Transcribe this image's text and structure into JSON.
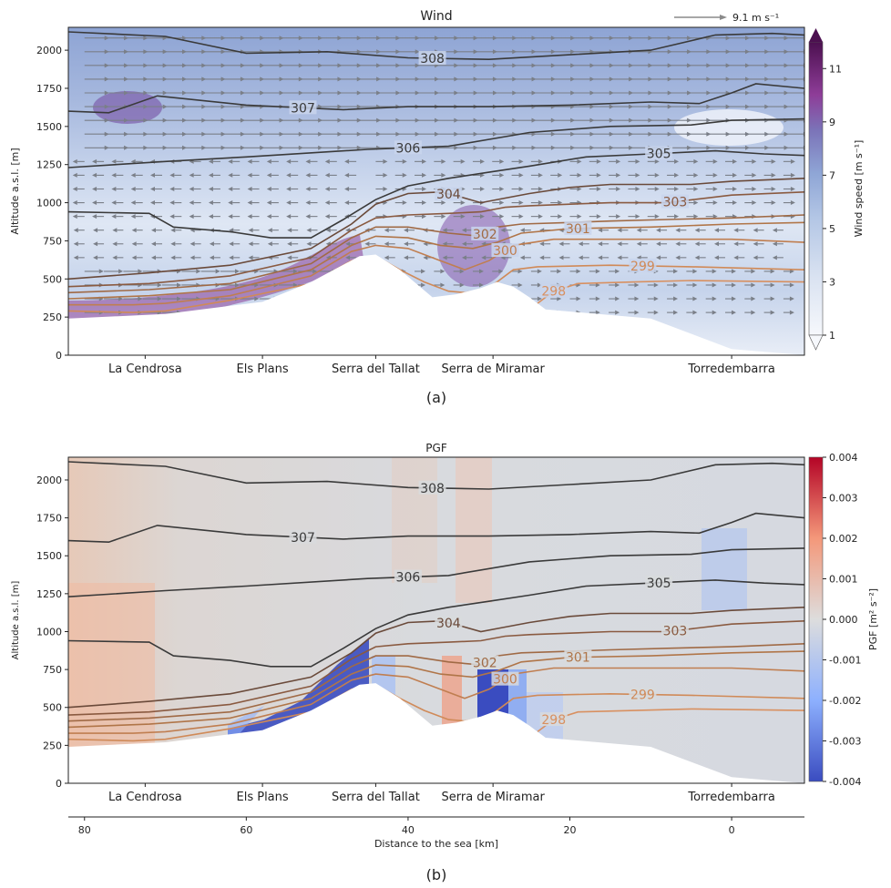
{
  "chart_data": [
    {
      "type": "contour",
      "title": "Wind",
      "panel_label": "(a)",
      "ylabel": "Altitude a.s.l. [m]",
      "ylim": [
        0,
        2150
      ],
      "yticks": [
        0,
        250,
        500,
        750,
        1000,
        1250,
        1500,
        1750,
        2000
      ],
      "xlim": [
        82,
        -9
      ],
      "locations": [
        {
          "name": "La Cendrosa",
          "x": 72.5
        },
        {
          "name": "Els Plans",
          "x": 58
        },
        {
          "name": "Serra del Tallat",
          "x": 44
        },
        {
          "name": "Serra de Miramar",
          "x": 29.5
        },
        {
          "name": "Torredembarra",
          "x": 0
        }
      ],
      "reference_vector": {
        "value": 9.1,
        "label": "9.1 m s⁻¹"
      },
      "colorbar": {
        "label": "Wind speed [m s⁻¹]",
        "ticks": [
          1,
          3,
          5,
          7,
          9,
          11
        ],
        "range": [
          1,
          12
        ],
        "extend": "both"
      }
    },
    {
      "type": "contour",
      "title": "PGF",
      "panel_label": "(b)",
      "ylabel": "Altitude a.s.l. [m]",
      "xlabel": "Distance to the sea [km]",
      "ylim": [
        0,
        2150
      ],
      "yticks": [
        0,
        250,
        500,
        750,
        1000,
        1250,
        1500,
        1750,
        2000
      ],
      "xlim": [
        82,
        -9
      ],
      "xticks": [
        80,
        60,
        40,
        20,
        0
      ],
      "locations": [
        {
          "name": "La Cendrosa",
          "x": 72.5
        },
        {
          "name": "Els Plans",
          "x": 58
        },
        {
          "name": "Serra del Tallat",
          "x": 44
        },
        {
          "name": "Serra de Miramar",
          "x": 29.5
        },
        {
          "name": "Torredembarra",
          "x": 0
        }
      ],
      "colorbar": {
        "label": "PGF [m² s⁻²]",
        "ticks": [
          "0.004",
          "0.003",
          "0.002",
          "0.001",
          "0.000",
          "-0.001",
          "-0.002",
          "-0.003",
          "-0.004"
        ],
        "range": [
          -0.004,
          0.004
        ]
      }
    }
  ],
  "shared": {
    "terrain": [
      [
        82,
        240
      ],
      [
        70,
        270
      ],
      [
        58,
        350
      ],
      [
        52,
        480
      ],
      [
        46,
        650
      ],
      [
        44,
        660
      ],
      [
        41,
        560
      ],
      [
        37,
        380
      ],
      [
        34,
        400
      ],
      [
        31,
        440
      ],
      [
        29,
        480
      ],
      [
        27,
        450
      ],
      [
        25,
        380
      ],
      [
        23,
        300
      ],
      [
        10,
        240
      ],
      [
        0,
        40
      ],
      [
        -9,
        0
      ]
    ],
    "theta_levels": [
      {
        "label": "308",
        "color": "#3a3a3a",
        "pts": [
          [
            82,
            2120
          ],
          [
            70,
            2090
          ],
          [
            60,
            1980
          ],
          [
            50,
            1990
          ],
          [
            40,
            1950
          ],
          [
            30,
            1940
          ],
          [
            20,
            1970
          ],
          [
            10,
            2000
          ],
          [
            2,
            2100
          ],
          [
            -5,
            2110
          ],
          [
            -9,
            2100
          ]
        ],
        "label_at": 37
      },
      {
        "label": "307",
        "color": "#3a3a3a",
        "pts": [
          [
            82,
            1600
          ],
          [
            77,
            1590
          ],
          [
            71,
            1700
          ],
          [
            60,
            1640
          ],
          [
            48,
            1610
          ],
          [
            40,
            1630
          ],
          [
            30,
            1630
          ],
          [
            20,
            1640
          ],
          [
            10,
            1660
          ],
          [
            4,
            1650
          ],
          [
            0,
            1720
          ],
          [
            -3,
            1780
          ],
          [
            -9,
            1750
          ]
        ],
        "label_at": 53
      },
      {
        "label": "306",
        "color": "#3a3a3a",
        "pts": [
          [
            82,
            1230
          ],
          [
            70,
            1270
          ],
          [
            60,
            1300
          ],
          [
            45,
            1350
          ],
          [
            35,
            1370
          ],
          [
            25,
            1460
          ],
          [
            15,
            1500
          ],
          [
            5,
            1510
          ],
          [
            0,
            1540
          ],
          [
            -9,
            1550
          ]
        ],
        "label_at": 40
      },
      {
        "label": "305",
        "color": "#3a3a3a",
        "pts": [
          [
            82,
            940
          ],
          [
            72,
            930
          ],
          [
            69,
            840
          ],
          [
            62,
            810
          ],
          [
            57,
            770
          ],
          [
            52,
            770
          ],
          [
            48,
            890
          ],
          [
            44,
            1020
          ],
          [
            40,
            1110
          ],
          [
            35,
            1160
          ],
          [
            30,
            1200
          ],
          [
            25,
            1240
          ],
          [
            18,
            1300
          ],
          [
            10,
            1320
          ],
          [
            2,
            1340
          ],
          [
            -4,
            1320
          ],
          [
            -9,
            1310
          ]
        ],
        "label_at": 9
      },
      {
        "label": "304",
        "color": "#6a4a3a",
        "pts": [
          [
            82,
            500
          ],
          [
            72,
            540
          ],
          [
            62,
            590
          ],
          [
            52,
            700
          ],
          [
            47,
            860
          ],
          [
            44,
            990
          ],
          [
            40,
            1060
          ],
          [
            36,
            1070
          ],
          [
            33,
            1030
          ],
          [
            31,
            1000
          ],
          [
            28,
            1030
          ],
          [
            25,
            1060
          ],
          [
            20,
            1100
          ],
          [
            15,
            1120
          ],
          [
            10,
            1120
          ],
          [
            5,
            1120
          ],
          [
            0,
            1140
          ],
          [
            -9,
            1160
          ]
        ],
        "label_at": 35
      },
      {
        "label": "303",
        "color": "#8a5a40",
        "pts": [
          [
            82,
            450
          ],
          [
            72,
            470
          ],
          [
            62,
            520
          ],
          [
            52,
            640
          ],
          [
            47,
            820
          ],
          [
            44,
            900
          ],
          [
            40,
            920
          ],
          [
            35,
            930
          ],
          [
            31,
            940
          ],
          [
            28,
            970
          ],
          [
            25,
            980
          ],
          [
            20,
            990
          ],
          [
            15,
            1000
          ],
          [
            8,
            1000
          ],
          [
            0,
            1050
          ],
          [
            -9,
            1070
          ]
        ],
        "label_at": 7
      },
      {
        "label": "302",
        "color": "#a06a45",
        "pts": [
          [
            82,
            410
          ],
          [
            72,
            430
          ],
          [
            62,
            470
          ],
          [
            52,
            600
          ],
          [
            47,
            770
          ],
          [
            44,
            840
          ],
          [
            40,
            840
          ],
          [
            35,
            800
          ],
          [
            31,
            780
          ],
          [
            29,
            840
          ],
          [
            26,
            860
          ],
          [
            20,
            870
          ],
          [
            15,
            880
          ],
          [
            8,
            890
          ],
          [
            0,
            900
          ],
          [
            -9,
            920
          ]
        ],
        "label_at": 30.5
      },
      {
        "label": "301",
        "color": "#b07548",
        "pts": [
          [
            82,
            370
          ],
          [
            72,
            390
          ],
          [
            62,
            430
          ],
          [
            52,
            560
          ],
          [
            47,
            720
          ],
          [
            44,
            780
          ],
          [
            40,
            770
          ],
          [
            36,
            720
          ],
          [
            32,
            700
          ],
          [
            29,
            740
          ],
          [
            26,
            800
          ],
          [
            20,
            830
          ],
          [
            10,
            840
          ],
          [
            0,
            860
          ],
          [
            -9,
            870
          ]
        ],
        "label_at": 19
      },
      {
        "label": "300",
        "color": "#c07e50",
        "pts": [
          [
            82,
            330
          ],
          [
            74,
            330
          ],
          [
            70,
            340
          ],
          [
            62,
            390
          ],
          [
            52,
            520
          ],
          [
            47,
            680
          ],
          [
            44,
            720
          ],
          [
            40,
            700
          ],
          [
            36,
            620
          ],
          [
            33,
            560
          ],
          [
            30,
            620
          ],
          [
            27,
            720
          ],
          [
            22,
            760
          ],
          [
            10,
            760
          ],
          [
            0,
            760
          ],
          [
            -9,
            740
          ]
        ],
        "label_at": 28
      },
      {
        "label": "299",
        "color": "#d08a58",
        "pts": [
          [
            82,
            290
          ],
          [
            74,
            280
          ],
          [
            70,
            290
          ],
          [
            62,
            360
          ],
          [
            52,
            470
          ],
          [
            47,
            620
          ],
          [
            44,
            650
          ],
          [
            41,
            560
          ],
          [
            38,
            480
          ],
          [
            35,
            420
          ],
          [
            33,
            410
          ],
          [
            30,
            440
          ],
          [
            27,
            560
          ],
          [
            24,
            580
          ],
          [
            15,
            590
          ],
          [
            5,
            580
          ],
          [
            -9,
            560
          ]
        ],
        "label_at": 11
      },
      {
        "label": "298",
        "color": "#d89060",
        "pts": [
          [
            24,
            340
          ],
          [
            22,
            420
          ],
          [
            19,
            470
          ],
          [
            12,
            480
          ],
          [
            5,
            490
          ],
          [
            -9,
            480
          ]
        ],
        "label_at": 22
      }
    ]
  }
}
